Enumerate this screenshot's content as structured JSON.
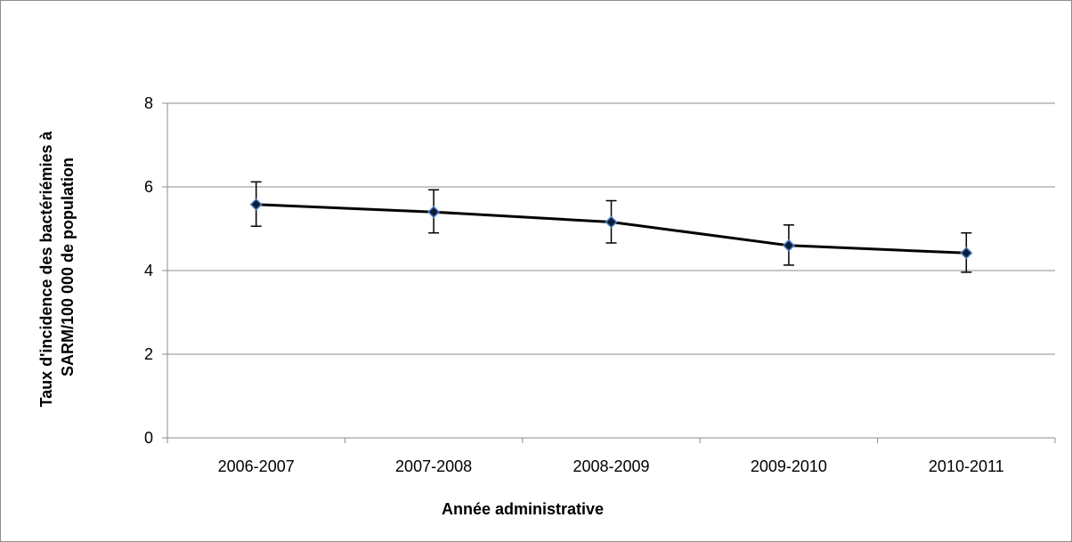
{
  "chart_data": {
    "type": "line",
    "title": "",
    "xlabel": "Année administrative",
    "ylabel_lines": [
      "Taux d'incidence des bactériémies à",
      "SARM/100 000 de population"
    ],
    "categories": [
      "2006-2007",
      "2007-2008",
      "2008-2009",
      "2009-2010",
      "2010-2011"
    ],
    "series": [
      {
        "values": [
          5.58,
          5.4,
          5.16,
          4.6,
          4.42
        ],
        "error_low": [
          5.06,
          4.9,
          4.66,
          4.13,
          3.96
        ],
        "error_high": [
          6.12,
          5.93,
          5.67,
          5.09,
          4.9
        ]
      }
    ],
    "ylim": [
      0,
      8
    ],
    "yticks": [
      "0",
      "2",
      "4",
      "6",
      "8"
    ],
    "grid": true,
    "legend": "none",
    "colors": {
      "line": "#000000",
      "marker_fill": "#0d1b3d",
      "marker_edge": "#4f81bd",
      "grid": "#8c8c8c"
    }
  }
}
